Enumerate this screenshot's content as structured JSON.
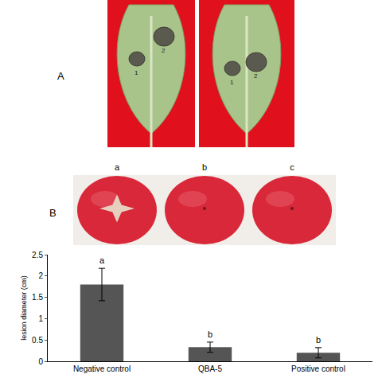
{
  "figure": {
    "panels": [
      {
        "label": "A",
        "leaves": [
          {
            "spots": [
              "1",
              "2"
            ]
          },
          {
            "spots": [
              "1",
              "2"
            ]
          }
        ]
      },
      {
        "label": "B",
        "fruits": [
          "a",
          "b",
          "c"
        ]
      }
    ]
  },
  "chart_data": {
    "type": "bar",
    "categories": [
      "Negative control",
      "QBA-5",
      "Positive control"
    ],
    "values": [
      1.8,
      0.33,
      0.2
    ],
    "error": [
      0.38,
      0.12,
      0.12
    ],
    "annotations": [
      "a",
      "b",
      "b"
    ],
    "ylabel": "lesion diameter (cm)",
    "color": "#555555",
    "ylim": [
      0,
      2.5
    ],
    "yticks": [
      0,
      0.5,
      1,
      1.5,
      2,
      2.5
    ],
    "grid": false
  }
}
